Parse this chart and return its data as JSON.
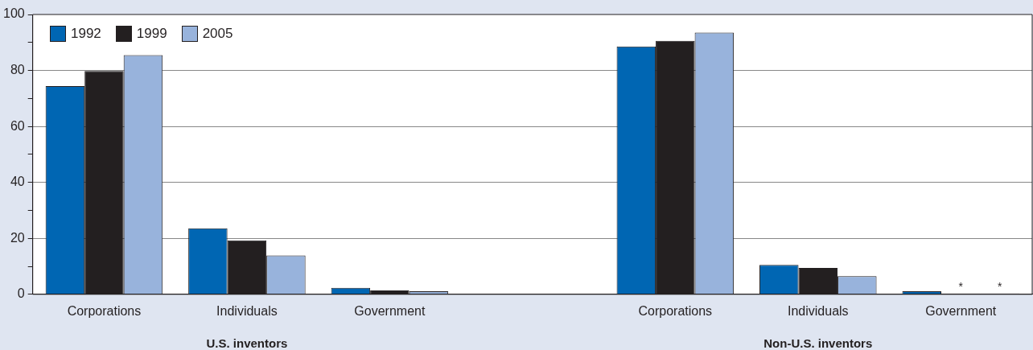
{
  "chart_data": {
    "type": "bar",
    "categories": [
      "Corporations",
      "Individuals",
      "Government",
      null,
      "Corporations",
      "Individuals",
      "Government"
    ],
    "series": [
      {
        "name": "1992",
        "color": "#0066b3",
        "values": [
          74.4,
          23.6,
          2.3,
          null,
          88.6,
          10.5,
          1.1
        ]
      },
      {
        "name": "1999",
        "color": "#231f20",
        "values": [
          79.8,
          19.3,
          1.4,
          null,
          90.6,
          9.4,
          0.3
        ],
        "value_labels": [
          null,
          null,
          null,
          null,
          null,
          null,
          "*"
        ]
      },
      {
        "name": "2005",
        "color": "#98b3dc",
        "values": [
          85.5,
          13.9,
          1.1,
          null,
          93.5,
          6.5,
          0.3
        ],
        "value_labels": [
          null,
          null,
          null,
          null,
          null,
          null,
          "*"
        ]
      }
    ],
    "ylim": [
      0,
      100
    ],
    "yticks": [
      0,
      {
        "value": 10,
        "label": null
      },
      20,
      {
        "value": 30,
        "label": null
      },
      40,
      {
        "value": 50,
        "label": null
      },
      60,
      {
        "value": 70,
        "label": null
      },
      80,
      {
        "value": 90,
        "label": null
      },
      100
    ],
    "grid": "y",
    "legend": "top left",
    "annotations": [
      "U.S. inventors",
      "Non-U.S. inventors"
    ]
  }
}
